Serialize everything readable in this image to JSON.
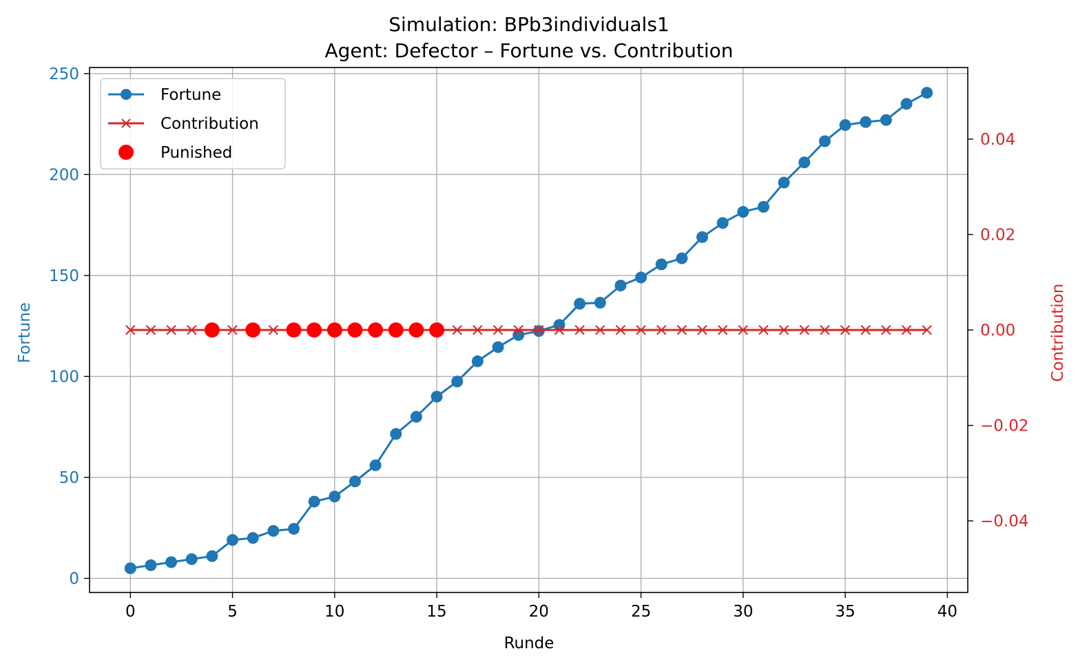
{
  "chart_data": {
    "type": "line",
    "title_line1": "Simulation: BPb3individuals1",
    "title_line2": "Agent: Defector – Fortune vs. Contribution",
    "xlabel": "Runde",
    "ylabel_left": "Fortune",
    "ylabel_right": "Contribution",
    "xlim": [
      -2,
      41
    ],
    "ylim_left": [
      -7,
      253
    ],
    "ylim_right": [
      -0.055,
      0.055
    ],
    "x_ticks": [
      0,
      5,
      10,
      15,
      20,
      25,
      30,
      35,
      40
    ],
    "x_tick_labels": [
      "0",
      "5",
      "10",
      "15",
      "20",
      "25",
      "30",
      "35",
      "40"
    ],
    "y_left_ticks": [
      0,
      50,
      100,
      150,
      200,
      250
    ],
    "y_left_tick_labels": [
      "0",
      "50",
      "100",
      "150",
      "200",
      "250"
    ],
    "y_right_ticks": [
      -0.04,
      -0.02,
      0.0,
      0.02,
      0.04
    ],
    "y_right_tick_labels": [
      "−0.04",
      "−0.02",
      "0.00",
      "0.02",
      "0.04"
    ],
    "grid": true,
    "legend_placement": "top-left",
    "colors": {
      "fortune": "#1f77b4",
      "contribution": "#d62728",
      "punished": "#ff0000",
      "grid": "#b0b0b0"
    },
    "x": [
      0,
      1,
      2,
      3,
      4,
      5,
      6,
      7,
      8,
      9,
      10,
      11,
      12,
      13,
      14,
      15,
      16,
      17,
      18,
      19,
      20,
      21,
      22,
      23,
      24,
      25,
      26,
      27,
      28,
      29,
      30,
      31,
      32,
      33,
      34,
      35,
      36,
      37,
      38,
      39
    ],
    "series": [
      {
        "name": "Fortune",
        "axis": "left",
        "marker": "circle",
        "values": [
          5,
          6.5,
          8,
          9.5,
          11,
          19,
          20,
          23.5,
          24.5,
          38,
          40.5,
          48,
          56,
          71.5,
          80,
          90,
          97.5,
          107.5,
          114.5,
          120.5,
          122.5,
          125.5,
          136,
          136.5,
          145,
          149,
          155.5,
          158.5,
          169,
          176,
          181.5,
          184,
          196,
          206,
          216.5,
          224.5,
          226,
          227,
          235,
          240.5
        ]
      },
      {
        "name": "Contribution",
        "axis": "right",
        "marker": "x",
        "values": [
          0,
          0,
          0,
          0,
          0,
          0,
          0,
          0,
          0,
          0,
          0,
          0,
          0,
          0,
          0,
          0,
          0,
          0,
          0,
          0,
          0,
          0,
          0,
          0,
          0,
          0,
          0,
          0,
          0,
          0,
          0,
          0,
          0,
          0,
          0,
          0,
          0,
          0,
          0,
          0
        ]
      },
      {
        "name": "Punished",
        "axis": "right",
        "marker": "dot",
        "x": [
          4,
          6,
          8,
          9,
          10,
          11,
          12,
          13,
          14,
          15
        ],
        "values": [
          0,
          0,
          0,
          0,
          0,
          0,
          0,
          0,
          0,
          0
        ]
      }
    ]
  }
}
